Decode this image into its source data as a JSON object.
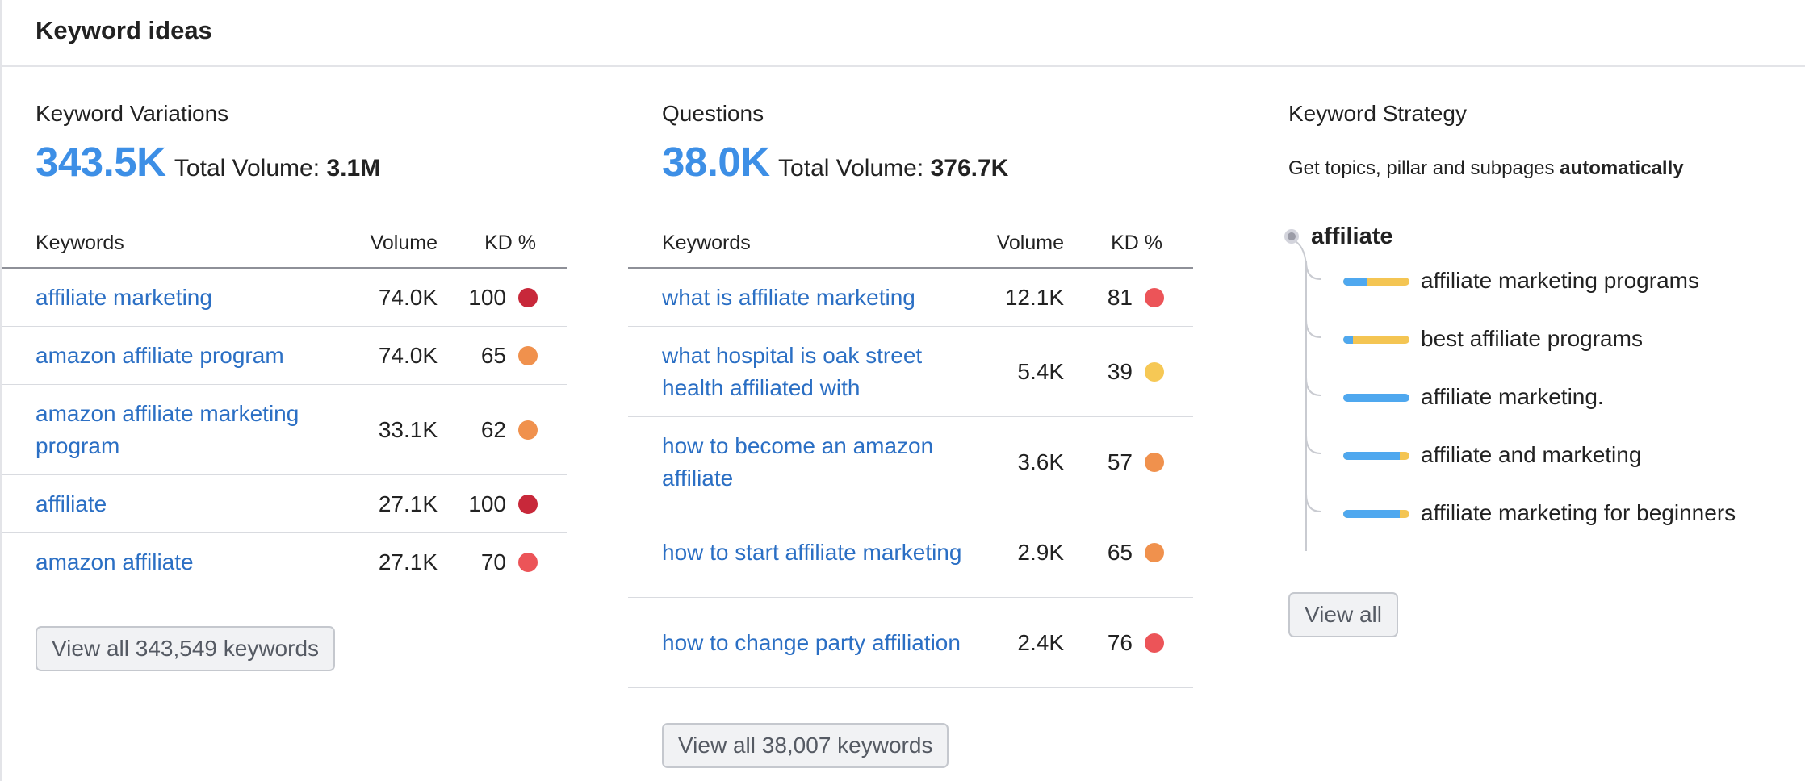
{
  "header": {
    "title": "Keyword ideas"
  },
  "variations": {
    "title": "Keyword Variations",
    "count": "343.5K",
    "total_label": "Total Volume:",
    "total_value": "3.1M",
    "columns": {
      "keyword": "Keywords",
      "volume": "Volume",
      "kd": "KD %"
    },
    "rows": [
      {
        "keyword": "affiliate marketing",
        "volume": "74.0K",
        "kd": "100",
        "kd_color": "#c8283a"
      },
      {
        "keyword": "amazon affiliate program",
        "volume": "74.0K",
        "kd": "65",
        "kd_color": "#f0914d"
      },
      {
        "keyword": "amazon affiliate marketing program",
        "volume": "33.1K",
        "kd": "62",
        "kd_color": "#f0914d"
      },
      {
        "keyword": "affiliate",
        "volume": "27.1K",
        "kd": "100",
        "kd_color": "#c8283a"
      },
      {
        "keyword": "amazon affiliate",
        "volume": "27.1K",
        "kd": "70",
        "kd_color": "#ec5458"
      }
    ],
    "view_all": "View all 343,549 keywords"
  },
  "questions": {
    "title": "Questions",
    "count": "38.0K",
    "total_label": "Total Volume:",
    "total_value": "376.7K",
    "columns": {
      "keyword": "Keywords",
      "volume": "Volume",
      "kd": "KD %"
    },
    "rows": [
      {
        "keyword": "what is affiliate marketing",
        "volume": "12.1K",
        "kd": "81",
        "kd_color": "#ec5458"
      },
      {
        "keyword": "what hospital is oak street health affiliated with",
        "volume": "5.4K",
        "kd": "39",
        "kd_color": "#f6c855"
      },
      {
        "keyword": "how to become an amazon affiliate",
        "volume": "3.6K",
        "kd": "57",
        "kd_color": "#f0914d"
      },
      {
        "keyword": "how to start affiliate marketing",
        "volume": "2.9K",
        "kd": "65",
        "kd_color": "#f0914d"
      },
      {
        "keyword": "how to change party affiliation",
        "volume": "2.4K",
        "kd": "76",
        "kd_color": "#ec5458"
      }
    ],
    "view_all": "View all 38,007 keywords"
  },
  "strategy": {
    "title": "Keyword Strategy",
    "desc_prefix": "Get topics, pillar and subpages ",
    "desc_bold": "automatically",
    "root": "affiliate",
    "items": [
      {
        "label": "affiliate marketing programs",
        "blue_fraction": 0.35
      },
      {
        "label": "best affiliate programs",
        "blue_fraction": 0.15
      },
      {
        "label": "affiliate marketing.",
        "blue_fraction": 1.0
      },
      {
        "label": "affiliate and marketing",
        "blue_fraction": 0.85
      },
      {
        "label": "affiliate marketing for beginners",
        "blue_fraction": 0.85
      }
    ],
    "view_all": "View all"
  }
}
